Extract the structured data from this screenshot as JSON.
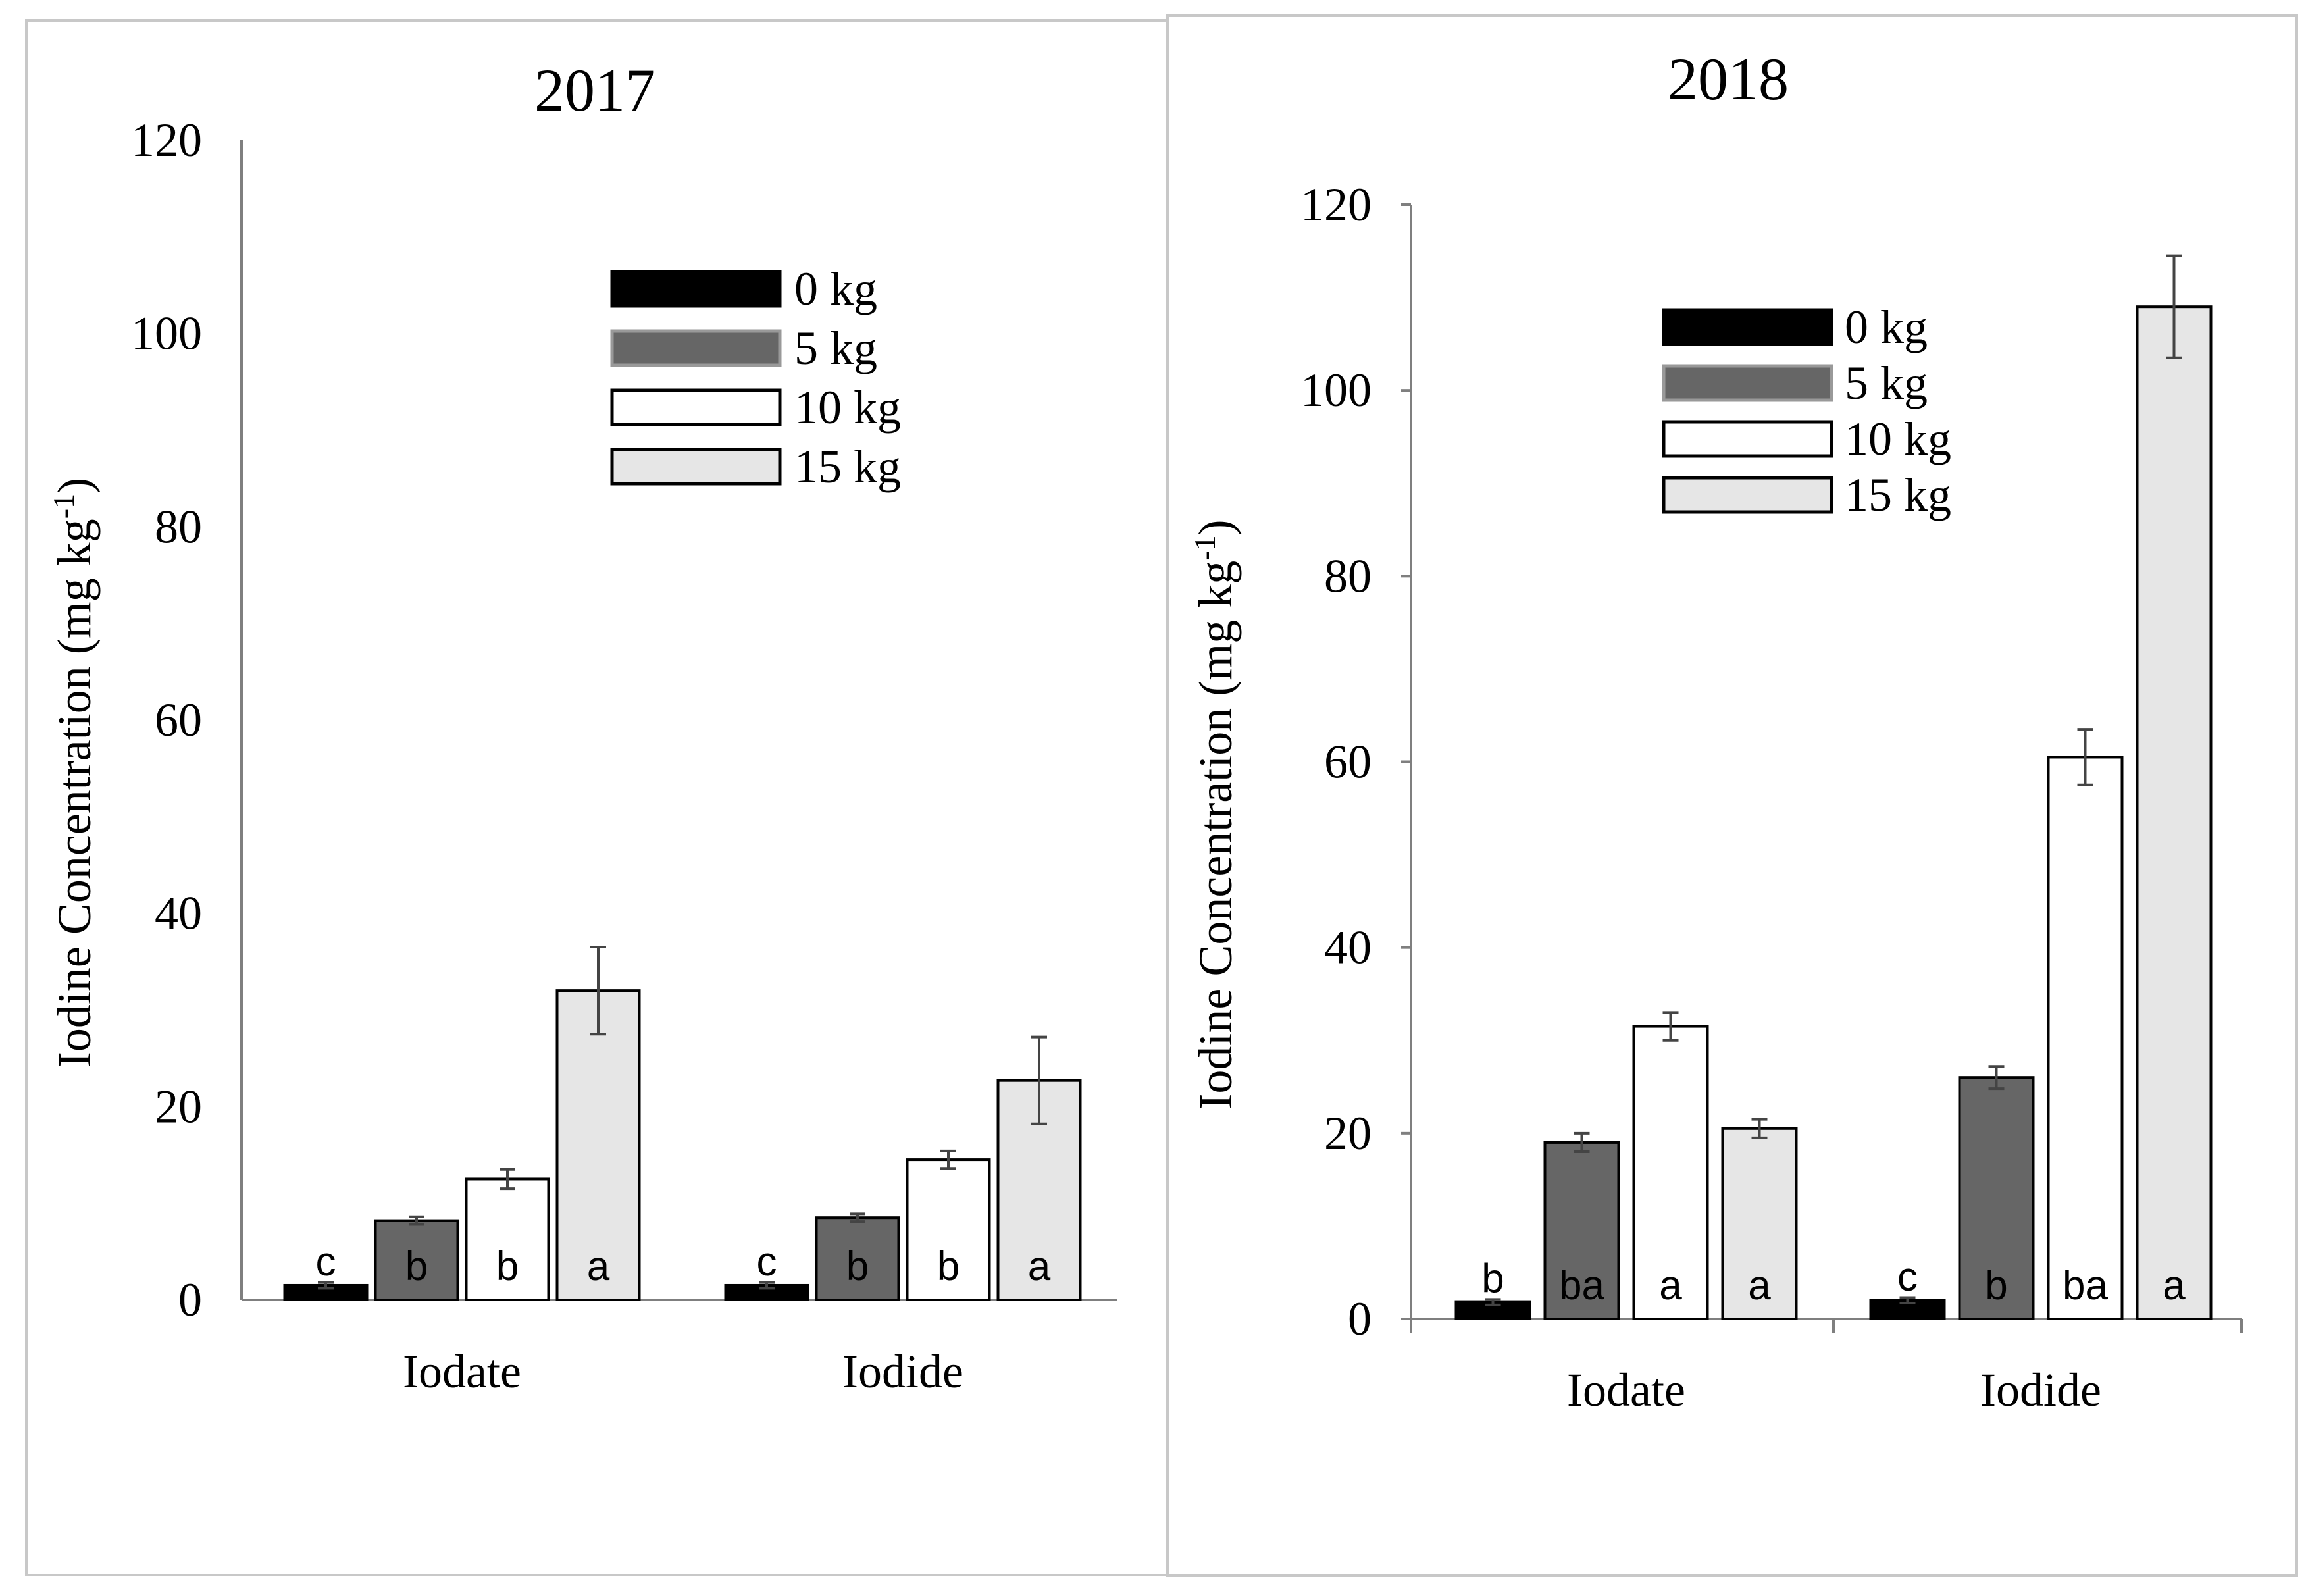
{
  "chart_data": [
    {
      "type": "bar",
      "title": "2017",
      "xlabel": "",
      "ylabel": "Iodine Concentration (mg kg",
      "ylabel_superscript": "-1",
      "ylabel_close": ")",
      "ylim": [
        0,
        120
      ],
      "yticks": [
        "0",
        "20",
        "40",
        "60",
        "80",
        "100",
        "120"
      ],
      "categories": [
        "Iodate",
        "Iodide"
      ],
      "legend_position": "top-center",
      "series": [
        {
          "name": "0 kg",
          "color": "#000000",
          "values": [
            1.5,
            1.5
          ],
          "errors": [
            0.3,
            0.3
          ],
          "letters": [
            "c",
            "c"
          ]
        },
        {
          "name": "5 kg",
          "color": "#666666",
          "values": [
            8.2,
            8.5
          ],
          "errors": [
            0.4,
            0.4
          ],
          "letters": [
            "b",
            "b"
          ]
        },
        {
          "name": "10 kg",
          "color": "#ffffff",
          "values": [
            12.5,
            14.5
          ],
          "errors": [
            1.0,
            0.9
          ],
          "letters": [
            "b",
            "b"
          ]
        },
        {
          "name": "15 kg",
          "color": "#e6e6e6",
          "values": [
            32.0,
            22.7
          ],
          "errors": [
            4.5,
            4.5
          ],
          "letters": [
            "a",
            "a"
          ]
        }
      ]
    },
    {
      "type": "bar",
      "title": "2018",
      "xlabel": "",
      "ylabel": "Iodine Concentration (mg kg",
      "ylabel_superscript": "-1",
      "ylabel_close": ")",
      "ylim": [
        0,
        120
      ],
      "yticks": [
        "0",
        "20",
        "40",
        "60",
        "80",
        "100",
        "120"
      ],
      "categories": [
        "Iodate",
        "Iodide"
      ],
      "legend_position": "top-center",
      "series": [
        {
          "name": "0 kg",
          "color": "#000000",
          "values": [
            1.8,
            2.0
          ],
          "errors": [
            0.3,
            0.3
          ],
          "letters": [
            "b",
            "c"
          ]
        },
        {
          "name": "5 kg",
          "color": "#666666",
          "values": [
            19.0,
            26.0
          ],
          "errors": [
            1.0,
            1.2
          ],
          "letters": [
            "ba",
            "b"
          ]
        },
        {
          "name": "10 kg",
          "color": "#ffffff",
          "values": [
            31.5,
            60.5
          ],
          "errors": [
            1.5,
            3.0
          ],
          "letters": [
            "a",
            "ba"
          ]
        },
        {
          "name": "15 kg",
          "color": "#e6e6e6",
          "values": [
            20.5,
            109.0
          ],
          "errors": [
            1.0,
            5.5
          ],
          "letters": [
            "a",
            "a"
          ]
        }
      ]
    }
  ]
}
